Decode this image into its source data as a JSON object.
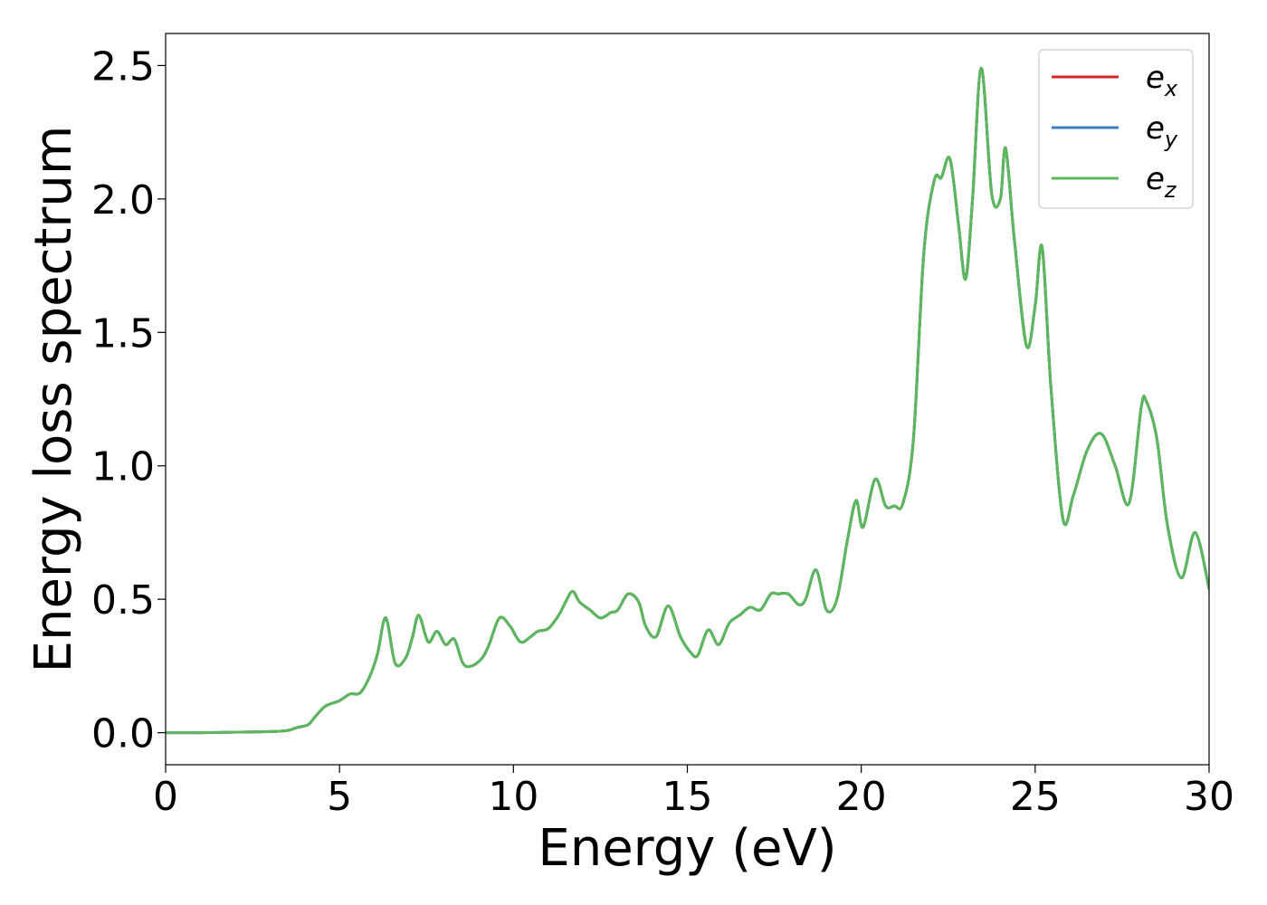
{
  "chart_data": {
    "type": "line",
    "title": "",
    "xlabel": "Energy (eV)",
    "ylabel": "Energy loss spectrum",
    "xlim": [
      0,
      30
    ],
    "ylim": [
      -0.12,
      2.62
    ],
    "xticks": [
      0,
      5,
      10,
      15,
      20,
      25,
      30
    ],
    "xtick_labels": [
      "0",
      "5",
      "10",
      "15",
      "20",
      "25",
      "30"
    ],
    "yticks": [
      0.0,
      0.5,
      1.0,
      1.5,
      2.0,
      2.5
    ],
    "ytick_labels": [
      "0.0",
      "0.5",
      "1.0",
      "1.5",
      "2.0",
      "2.5"
    ],
    "grid": false,
    "legend_position": "top-right",
    "x": [
      0,
      1,
      2,
      3,
      3.5,
      3.8,
      4.1,
      4.3,
      4.6,
      5.0,
      5.3,
      5.6,
      5.9,
      6.1,
      6.33,
      6.6,
      6.9,
      7.1,
      7.28,
      7.55,
      7.8,
      8.05,
      8.3,
      8.55,
      8.8,
      9.1,
      9.3,
      9.6,
      9.9,
      10.2,
      10.5,
      10.7,
      11.0,
      11.3,
      11.5,
      11.7,
      11.9,
      12.2,
      12.5,
      12.8,
      13.0,
      13.3,
      13.6,
      13.8,
      14.1,
      14.45,
      14.8,
      15.1,
      15.3,
      15.6,
      15.9,
      16.2,
      16.5,
      16.8,
      17.1,
      17.4,
      17.6,
      17.9,
      18.2,
      18.4,
      18.7,
      19.0,
      19.3,
      19.6,
      19.85,
      20.05,
      20.4,
      20.7,
      20.95,
      21.2,
      21.5,
      21.8,
      22.1,
      22.3,
      22.55,
      22.8,
      23.0,
      23.2,
      23.45,
      23.75,
      24.0,
      24.15,
      24.4,
      24.75,
      25.0,
      25.2,
      25.45,
      25.8,
      26.1,
      26.5,
      26.9,
      27.3,
      27.7,
      28.05,
      28.2,
      28.5,
      28.8,
      29.2,
      29.6,
      30.0
    ],
    "series": [
      {
        "name": "e_x",
        "name_main": "e",
        "name_sub": "x",
        "color": "#d62728",
        "values": [
          0.0,
          0.0,
          0.002,
          0.004,
          0.008,
          0.02,
          0.03,
          0.06,
          0.1,
          0.12,
          0.145,
          0.15,
          0.22,
          0.3,
          0.43,
          0.26,
          0.28,
          0.36,
          0.44,
          0.34,
          0.38,
          0.33,
          0.35,
          0.26,
          0.25,
          0.28,
          0.33,
          0.43,
          0.4,
          0.34,
          0.36,
          0.38,
          0.39,
          0.44,
          0.49,
          0.53,
          0.49,
          0.46,
          0.43,
          0.45,
          0.46,
          0.52,
          0.49,
          0.4,
          0.36,
          0.475,
          0.36,
          0.3,
          0.29,
          0.385,
          0.33,
          0.41,
          0.44,
          0.47,
          0.46,
          0.52,
          0.52,
          0.52,
          0.48,
          0.5,
          0.61,
          0.46,
          0.5,
          0.72,
          0.87,
          0.77,
          0.95,
          0.85,
          0.85,
          0.86,
          1.1,
          1.8,
          2.07,
          2.08,
          2.15,
          1.9,
          1.7,
          2.0,
          2.49,
          2.02,
          2.0,
          2.19,
          1.85,
          1.45,
          1.6,
          1.82,
          1.3,
          0.8,
          0.89,
          1.06,
          1.12,
          1.0,
          0.86,
          1.22,
          1.24,
          1.1,
          0.78,
          0.58,
          0.75,
          0.54
        ]
      },
      {
        "name": "e_y",
        "name_main": "e",
        "name_sub": "y",
        "color": "#3a7ebf",
        "values": [
          0.0,
          0.0,
          0.002,
          0.004,
          0.008,
          0.02,
          0.03,
          0.06,
          0.1,
          0.12,
          0.145,
          0.15,
          0.22,
          0.3,
          0.43,
          0.26,
          0.28,
          0.36,
          0.44,
          0.34,
          0.38,
          0.33,
          0.35,
          0.26,
          0.25,
          0.28,
          0.33,
          0.43,
          0.4,
          0.34,
          0.36,
          0.38,
          0.39,
          0.44,
          0.49,
          0.53,
          0.49,
          0.46,
          0.43,
          0.45,
          0.46,
          0.52,
          0.49,
          0.4,
          0.36,
          0.475,
          0.36,
          0.3,
          0.29,
          0.385,
          0.33,
          0.41,
          0.44,
          0.47,
          0.46,
          0.52,
          0.52,
          0.52,
          0.48,
          0.5,
          0.61,
          0.46,
          0.5,
          0.72,
          0.87,
          0.77,
          0.95,
          0.85,
          0.85,
          0.86,
          1.1,
          1.8,
          2.07,
          2.08,
          2.15,
          1.9,
          1.7,
          2.0,
          2.49,
          2.02,
          2.0,
          2.19,
          1.85,
          1.45,
          1.6,
          1.82,
          1.3,
          0.8,
          0.89,
          1.06,
          1.12,
          1.0,
          0.86,
          1.22,
          1.24,
          1.1,
          0.78,
          0.58,
          0.75,
          0.54
        ]
      },
      {
        "name": "e_z",
        "name_main": "e",
        "name_sub": "z",
        "color": "#5cb85c",
        "values": [
          0.0,
          0.0,
          0.002,
          0.004,
          0.008,
          0.02,
          0.03,
          0.06,
          0.1,
          0.12,
          0.145,
          0.15,
          0.22,
          0.3,
          0.43,
          0.26,
          0.28,
          0.36,
          0.44,
          0.34,
          0.38,
          0.33,
          0.35,
          0.26,
          0.25,
          0.28,
          0.33,
          0.43,
          0.4,
          0.34,
          0.36,
          0.38,
          0.39,
          0.44,
          0.49,
          0.53,
          0.49,
          0.46,
          0.43,
          0.45,
          0.46,
          0.52,
          0.49,
          0.4,
          0.36,
          0.475,
          0.36,
          0.3,
          0.29,
          0.385,
          0.33,
          0.41,
          0.44,
          0.47,
          0.46,
          0.52,
          0.52,
          0.52,
          0.48,
          0.5,
          0.61,
          0.46,
          0.5,
          0.72,
          0.87,
          0.77,
          0.95,
          0.85,
          0.85,
          0.86,
          1.1,
          1.8,
          2.07,
          2.08,
          2.15,
          1.9,
          1.7,
          2.0,
          2.49,
          2.02,
          2.0,
          2.19,
          1.85,
          1.45,
          1.6,
          1.82,
          1.3,
          0.8,
          0.89,
          1.06,
          1.12,
          1.0,
          0.86,
          1.22,
          1.24,
          1.1,
          0.78,
          0.58,
          0.75,
          0.54
        ]
      }
    ]
  }
}
